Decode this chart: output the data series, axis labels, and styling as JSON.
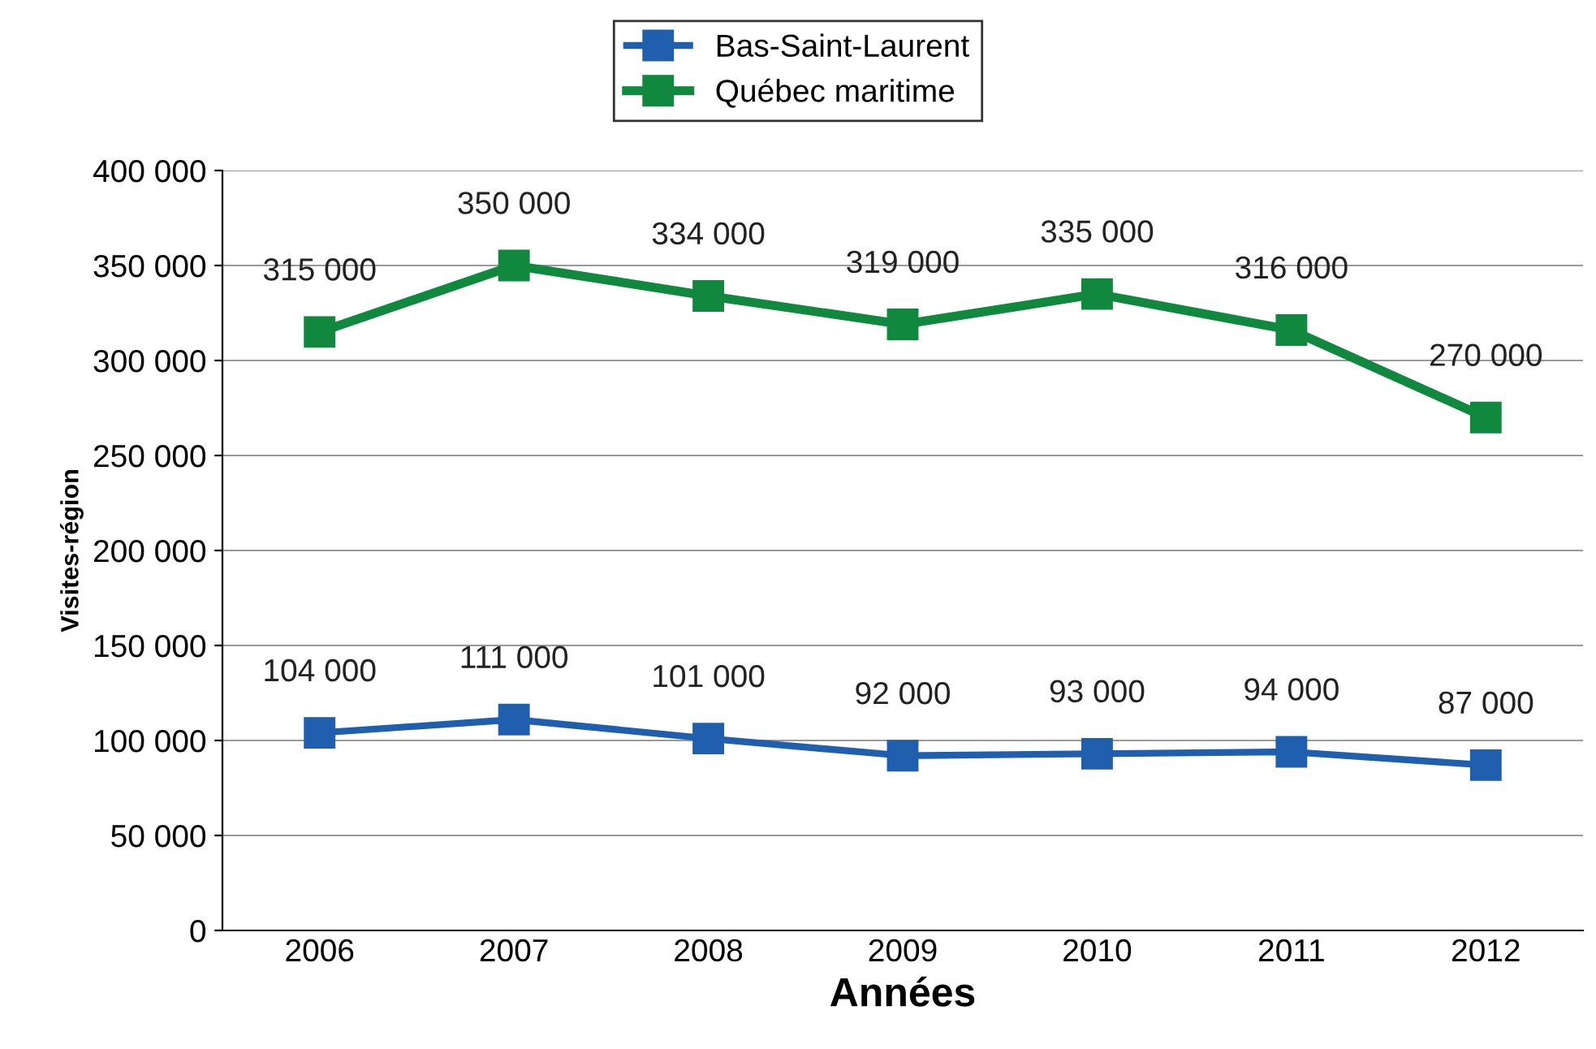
{
  "chart_data": {
    "type": "line",
    "xlabel": "Années",
    "ylabel": "Visites-région",
    "categories": [
      "2006",
      "2007",
      "2008",
      "2009",
      "2010",
      "2011",
      "2012"
    ],
    "series": [
      {
        "name": "Bas-Saint-Laurent",
        "color": "#1f5fad",
        "values": [
          104000,
          111000,
          101000,
          92000,
          93000,
          94000,
          87000
        ],
        "value_labels": [
          "104 000",
          "111 000",
          "101 000",
          "92 000",
          "93 000",
          "94 000",
          "87 000"
        ]
      },
      {
        "name": "Québec maritime",
        "color": "#10893e",
        "values": [
          315000,
          350000,
          334000,
          319000,
          335000,
          316000,
          270000
        ],
        "value_labels": [
          "315 000",
          "350 000",
          "334 000",
          "319 000",
          "335 000",
          "316 000",
          "270 000"
        ]
      }
    ],
    "ylim": [
      0,
      400000
    ],
    "yticks": [
      0,
      {
        "value": 50000,
        "label": "50 000"
      },
      {
        "value": 100000,
        "label": "100 000"
      },
      {
        "value": 150000,
        "label": "150 000"
      },
      {
        "value": 200000,
        "label": "200 000"
      },
      {
        "value": 250000,
        "label": "250 000"
      },
      {
        "value": 300000,
        "label": "300 000"
      },
      {
        "value": 350000,
        "label": "350 000"
      },
      {
        "value": 400000,
        "label": "400 000"
      }
    ],
    "grid": "y",
    "legend": "top",
    "marker": "square",
    "line_style": "solid"
  }
}
